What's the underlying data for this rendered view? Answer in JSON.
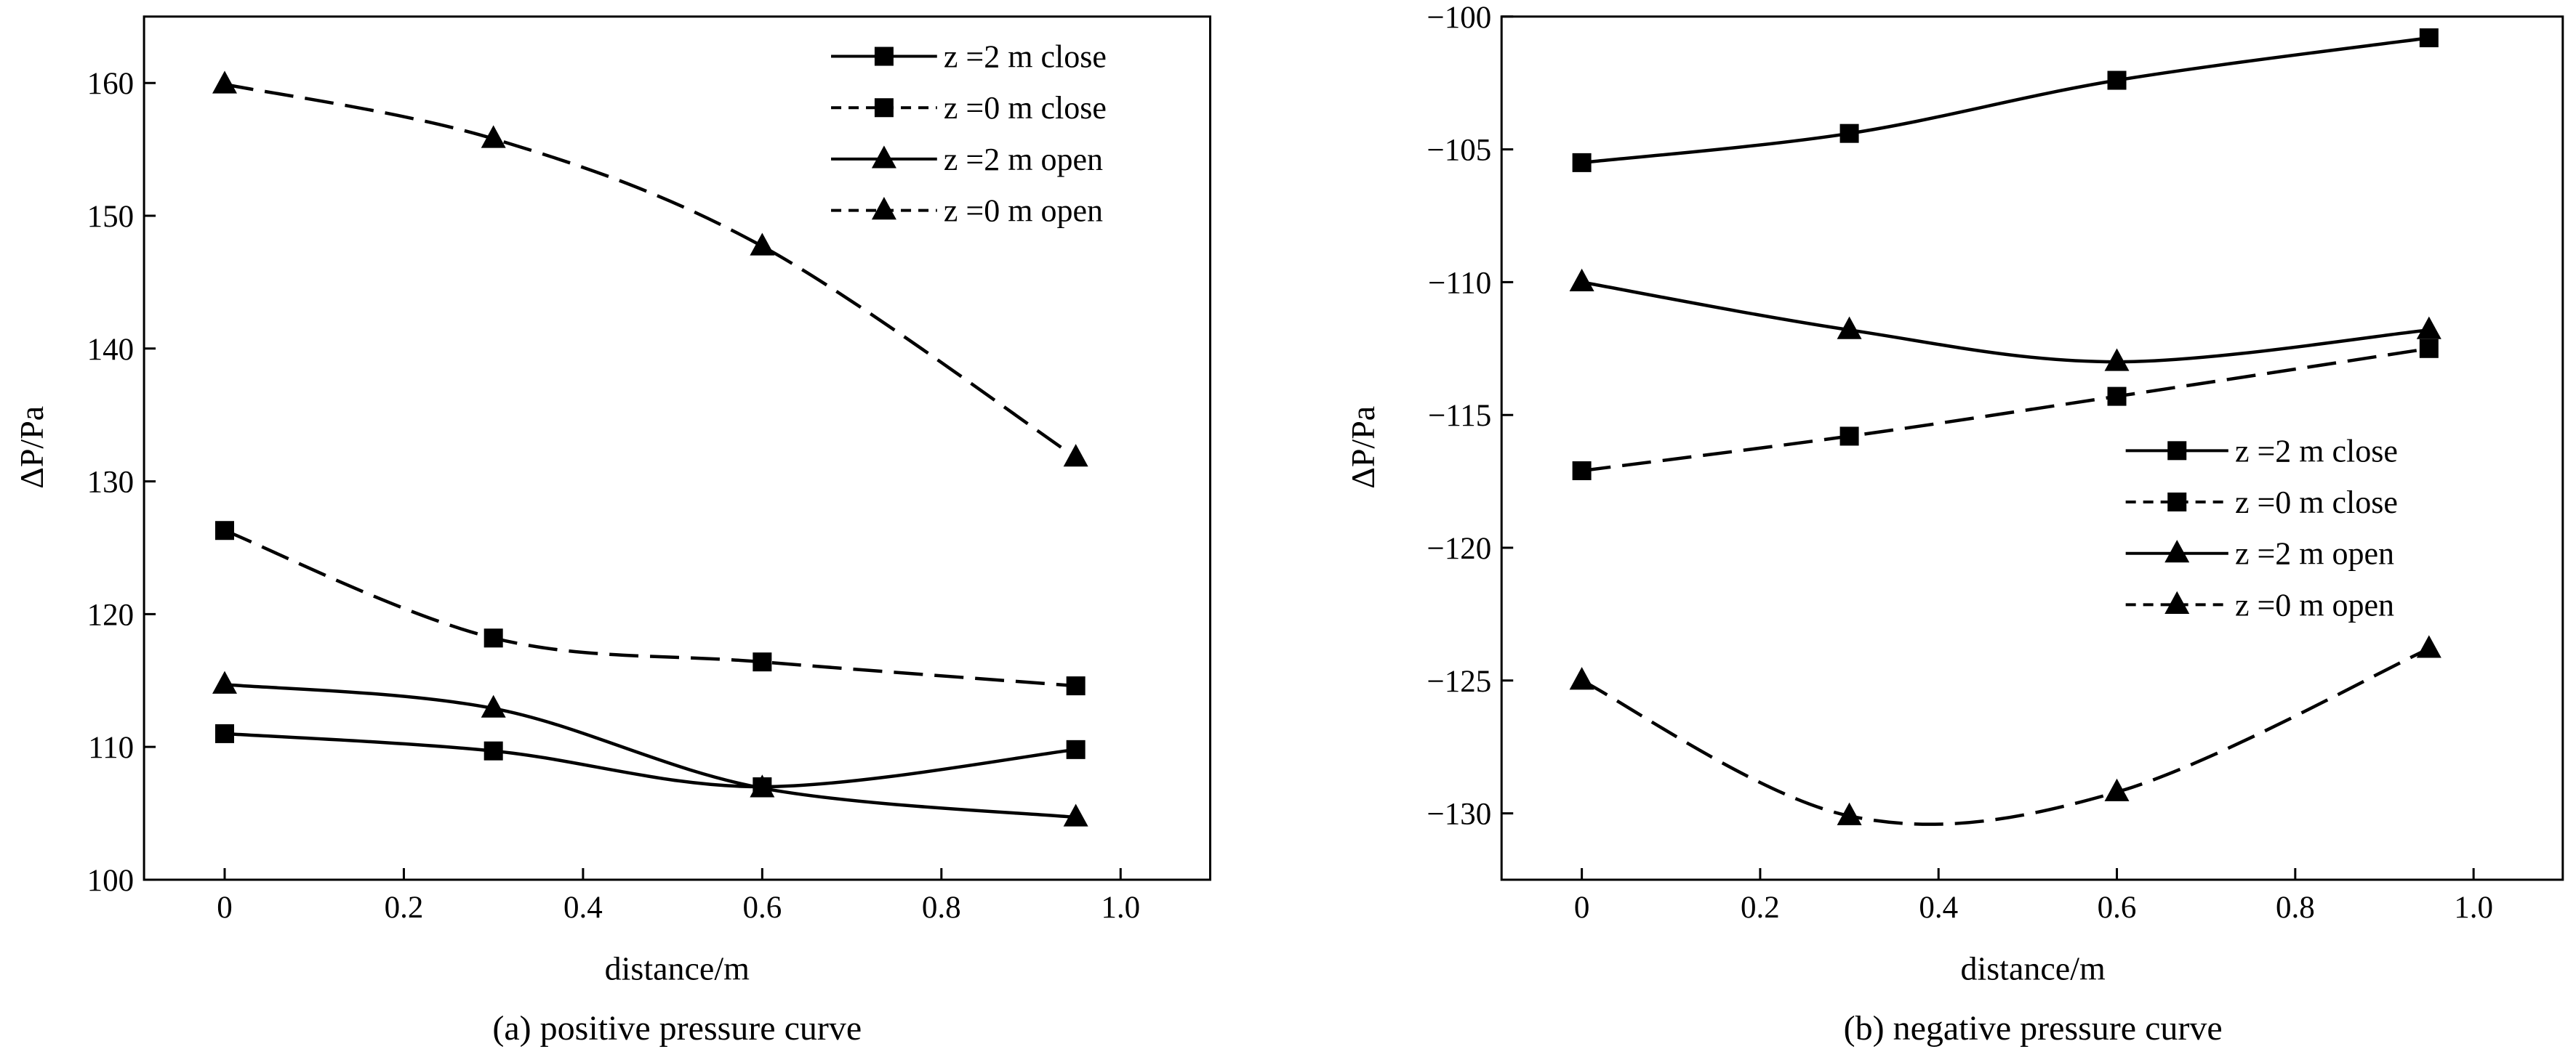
{
  "chart_data": [
    {
      "type": "line",
      "caption": "(a) positive pressure curve",
      "xlabel": "distance/m",
      "ylabel": "ΔP/Pa",
      "xlim": [
        -0.09,
        1.1
      ],
      "ylim": [
        100,
        165
      ],
      "xticks": [
        0,
        0.2,
        0.4,
        0.6,
        0.8,
        1.0
      ],
      "xtick_labels": [
        "0",
        "0.2",
        "0.4",
        "0.6",
        "0.8",
        "1.0"
      ],
      "yticks": [
        100,
        110,
        120,
        130,
        140,
        150,
        160
      ],
      "ytick_labels": [
        "100",
        "110",
        "120",
        "130",
        "140",
        "150",
        "160"
      ],
      "legend_position": "top-right",
      "series": [
        {
          "name": "z =2 m close",
          "marker": "square",
          "line": "solid",
          "x": [
            0,
            0.3,
            0.6,
            0.95
          ],
          "y": [
            111.0,
            109.7,
            107.0,
            109.8
          ]
        },
        {
          "name": "z =0 m close",
          "marker": "square",
          "line": "dashed",
          "x": [
            0,
            0.3,
            0.6,
            0.95
          ],
          "y": [
            126.3,
            118.2,
            116.4,
            114.6
          ]
        },
        {
          "name": "z =2 m open",
          "marker": "triangle",
          "line": "solid",
          "x": [
            0,
            0.3,
            0.6,
            0.95
          ],
          "y": [
            114.7,
            112.9,
            106.9,
            104.7
          ]
        },
        {
          "name": "z =0 m open",
          "marker": "triangle",
          "line": "dashed",
          "x": [
            0,
            0.3,
            0.6,
            0.95
          ],
          "y": [
            159.9,
            155.8,
            147.7,
            131.8
          ]
        }
      ]
    },
    {
      "type": "line",
      "caption": "(b) negative pressure curve",
      "xlabel": "distance/m",
      "ylabel": "ΔP/Pa",
      "xlim": [
        -0.09,
        1.1
      ],
      "ylim": [
        -132.5,
        -100
      ],
      "xticks": [
        0,
        0.2,
        0.4,
        0.6,
        0.8,
        1.0
      ],
      "xtick_labels": [
        "0",
        "0.2",
        "0.4",
        "0.6",
        "0.8",
        "1.0"
      ],
      "yticks": [
        -130,
        -125,
        -120,
        -115,
        -110,
        -105,
        -100
      ],
      "ytick_labels": [
        "−130",
        "−125",
        "−120",
        "−115",
        "−110",
        "−105",
        "−100"
      ],
      "legend_position": "center-right",
      "series": [
        {
          "name": "z =2 m close",
          "marker": "square",
          "line": "solid",
          "x": [
            0,
            0.3,
            0.6,
            0.95
          ],
          "y": [
            -105.5,
            -104.4,
            -102.4,
            -100.8
          ]
        },
        {
          "name": "z =0 m close",
          "marker": "square",
          "line": "dashed",
          "x": [
            0,
            0.3,
            0.6,
            0.95
          ],
          "y": [
            -117.1,
            -115.8,
            -114.3,
            -112.5
          ]
        },
        {
          "name": "z =2 m open",
          "marker": "triangle",
          "line": "solid",
          "x": [
            0,
            0.3,
            0.6,
            0.95
          ],
          "y": [
            -110.0,
            -111.8,
            -113.0,
            -111.8
          ]
        },
        {
          "name": "z =0 m open",
          "marker": "triangle",
          "line": "dashed",
          "x": [
            0,
            0.3,
            0.6,
            0.95
          ],
          "y": [
            -125.0,
            -130.1,
            -129.2,
            -123.8
          ]
        }
      ]
    }
  ]
}
